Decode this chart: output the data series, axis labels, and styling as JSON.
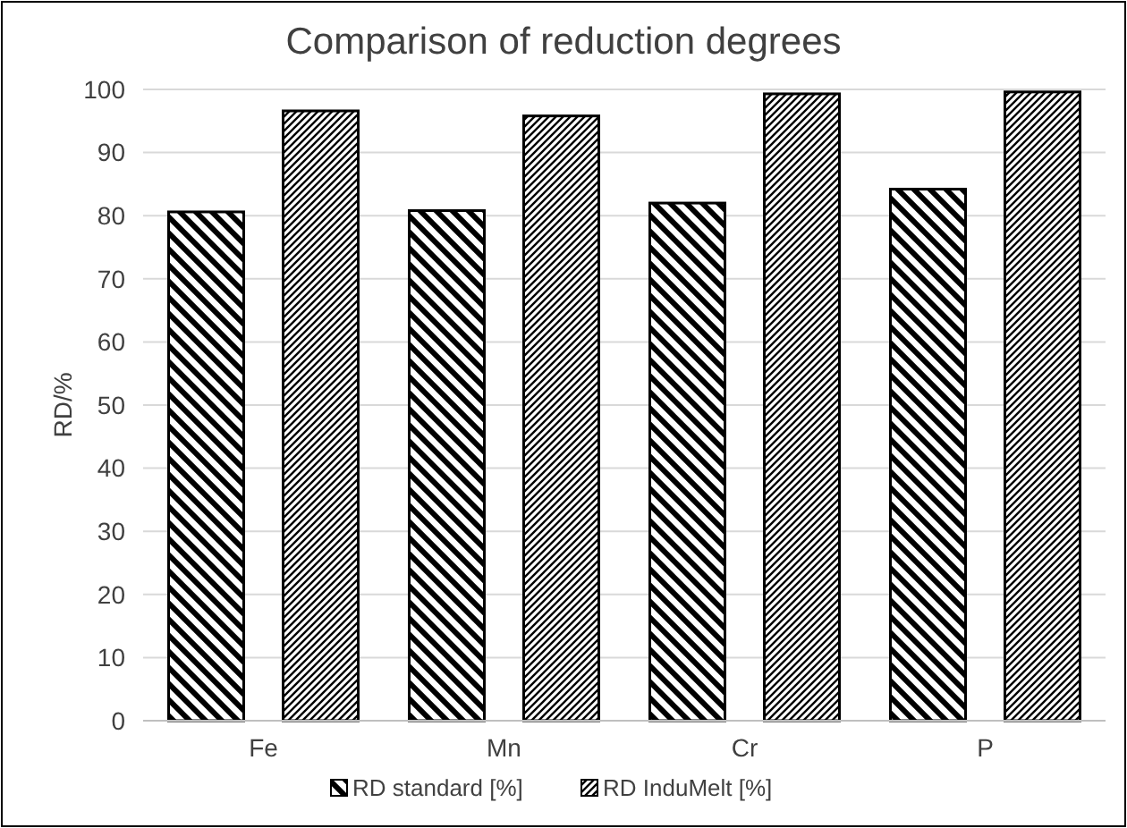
{
  "chart_data": {
    "type": "bar",
    "title": "Comparison of reduction degrees",
    "ylabel": "RD/%",
    "categories": [
      "Fe",
      "Mn",
      "Cr",
      "P"
    ],
    "series": [
      {
        "name": "RD standard [%]",
        "color": "#000000",
        "values": [
          80.6,
          80.8,
          82,
          84.2
        ]
      },
      {
        "name": "RD InduMelt [%]",
        "color": "#000000",
        "values": [
          96.6,
          95.8,
          99.3,
          99.6
        ]
      }
    ],
    "ylim": [
      0,
      100
    ],
    "yticks": [
      0,
      10,
      20,
      30,
      40,
      50,
      60,
      70,
      80,
      90,
      100
    ],
    "grid": "y",
    "legend": "bottom"
  }
}
